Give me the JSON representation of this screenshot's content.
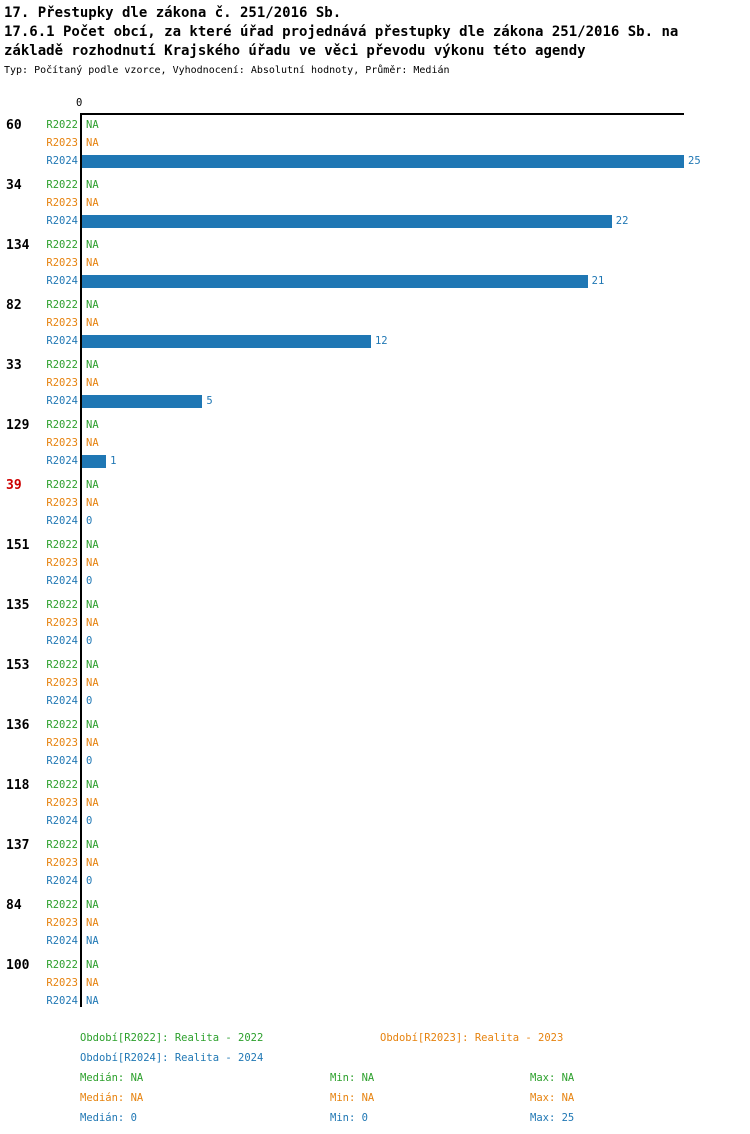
{
  "header": {
    "title": "17. Přestupky dle zákona č. 251/2016 Sb.",
    "subtitle": "17.6.1 Počet obcí, za které úřad projednává přestupky dle zákona 251/2016 Sb. na základě rozhodnutí Krajského úřadu ve věci převodu výkonu této agendy",
    "meta": "Typ: Počítaný podle vzorce, Vyhodnocení: Absolutní hodnoty, Průměr: Medián"
  },
  "chart_data": {
    "type": "bar",
    "orientation": "horizontal",
    "xlim": [
      0,
      25
    ],
    "axis_origin_label": "0",
    "series": [
      "R2022",
      "R2023",
      "R2024"
    ],
    "colors": {
      "R2022": "#2ca02c",
      "R2023": "#e6820e",
      "R2024": "#1f77b4",
      "highlight": "#cc0000",
      "axis": "#000000"
    },
    "groups": [
      {
        "label": "60",
        "highlighted": false,
        "rows": [
          {
            "series": "R2022",
            "value": "NA"
          },
          {
            "series": "R2023",
            "value": "NA"
          },
          {
            "series": "R2024",
            "value": 25
          }
        ]
      },
      {
        "label": "34",
        "highlighted": false,
        "rows": [
          {
            "series": "R2022",
            "value": "NA"
          },
          {
            "series": "R2023",
            "value": "NA"
          },
          {
            "series": "R2024",
            "value": 22
          }
        ]
      },
      {
        "label": "134",
        "highlighted": false,
        "rows": [
          {
            "series": "R2022",
            "value": "NA"
          },
          {
            "series": "R2023",
            "value": "NA"
          },
          {
            "series": "R2024",
            "value": 21
          }
        ]
      },
      {
        "label": "82",
        "highlighted": false,
        "rows": [
          {
            "series": "R2022",
            "value": "NA"
          },
          {
            "series": "R2023",
            "value": "NA"
          },
          {
            "series": "R2024",
            "value": 12
          }
        ]
      },
      {
        "label": "33",
        "highlighted": false,
        "rows": [
          {
            "series": "R2022",
            "value": "NA"
          },
          {
            "series": "R2023",
            "value": "NA"
          },
          {
            "series": "R2024",
            "value": 5
          }
        ]
      },
      {
        "label": "129",
        "highlighted": false,
        "rows": [
          {
            "series": "R2022",
            "value": "NA"
          },
          {
            "series": "R2023",
            "value": "NA"
          },
          {
            "series": "R2024",
            "value": 1
          }
        ]
      },
      {
        "label": "39",
        "highlighted": true,
        "rows": [
          {
            "series": "R2022",
            "value": "NA"
          },
          {
            "series": "R2023",
            "value": "NA"
          },
          {
            "series": "R2024",
            "value": 0
          }
        ]
      },
      {
        "label": "151",
        "highlighted": false,
        "rows": [
          {
            "series": "R2022",
            "value": "NA"
          },
          {
            "series": "R2023",
            "value": "NA"
          },
          {
            "series": "R2024",
            "value": 0
          }
        ]
      },
      {
        "label": "135",
        "highlighted": false,
        "rows": [
          {
            "series": "R2022",
            "value": "NA"
          },
          {
            "series": "R2023",
            "value": "NA"
          },
          {
            "series": "R2024",
            "value": 0
          }
        ]
      },
      {
        "label": "153",
        "highlighted": false,
        "rows": [
          {
            "series": "R2022",
            "value": "NA"
          },
          {
            "series": "R2023",
            "value": "NA"
          },
          {
            "series": "R2024",
            "value": 0
          }
        ]
      },
      {
        "label": "136",
        "highlighted": false,
        "rows": [
          {
            "series": "R2022",
            "value": "NA"
          },
          {
            "series": "R2023",
            "value": "NA"
          },
          {
            "series": "R2024",
            "value": 0
          }
        ]
      },
      {
        "label": "118",
        "highlighted": false,
        "rows": [
          {
            "series": "R2022",
            "value": "NA"
          },
          {
            "series": "R2023",
            "value": "NA"
          },
          {
            "series": "R2024",
            "value": 0
          }
        ]
      },
      {
        "label": "137",
        "highlighted": false,
        "rows": [
          {
            "series": "R2022",
            "value": "NA"
          },
          {
            "series": "R2023",
            "value": "NA"
          },
          {
            "series": "R2024",
            "value": 0
          }
        ]
      },
      {
        "label": "84",
        "highlighted": false,
        "rows": [
          {
            "series": "R2022",
            "value": "NA"
          },
          {
            "series": "R2023",
            "value": "NA"
          },
          {
            "series": "R2024",
            "value": "NA"
          }
        ]
      },
      {
        "label": "100",
        "highlighted": false,
        "rows": [
          {
            "series": "R2022",
            "value": "NA"
          },
          {
            "series": "R2023",
            "value": "NA"
          },
          {
            "series": "R2024",
            "value": "NA"
          }
        ]
      }
    ]
  },
  "legend": {
    "items": [
      {
        "series": "R2022",
        "label": "Období[R2022]: Realita - 2022"
      },
      {
        "series": "R2023",
        "label": "Období[R2023]: Realita - 2023"
      },
      {
        "series": "R2024",
        "label": "Období[R2024]: Realita - 2024"
      }
    ]
  },
  "stats": {
    "rows": [
      {
        "series": "R2022",
        "median": "Medián: NA",
        "min": "Min: NA",
        "max": "Max: NA"
      },
      {
        "series": "R2023",
        "median": "Medián: NA",
        "min": "Min: NA",
        "max": "Max: NA"
      },
      {
        "series": "R2024",
        "median": "Medián: 0",
        "min": "Min: 0",
        "max": "Max: 25"
      }
    ]
  }
}
